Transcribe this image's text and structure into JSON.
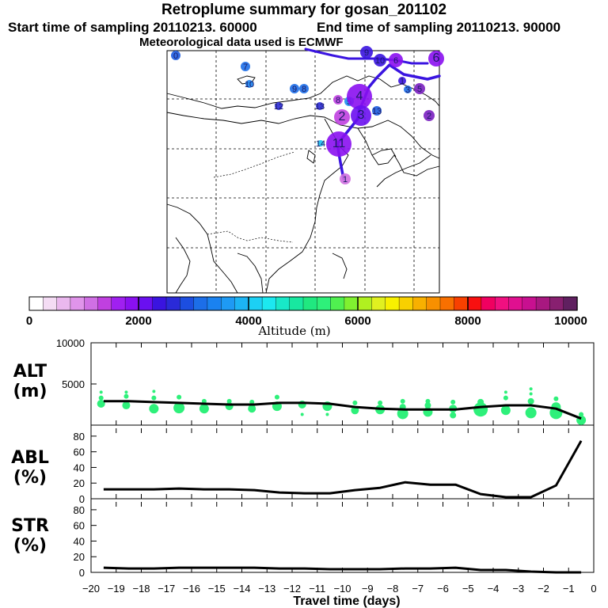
{
  "header": {
    "title": "Retroplume summary for gosan_201102",
    "start_time": "Start time of sampling 20110213. 60000",
    "end_time": "End time of sampling 20110213. 90000",
    "met_data": "Meteorological data used is ECMWF"
  },
  "colors": {
    "trajectory": "#3a14e0",
    "points": "#2ef07a",
    "line": "#000000"
  },
  "map": {
    "plume_labels": [
      {
        "label": "0",
        "color": "#1c5ce0",
        "alt_m": 3000
      },
      {
        "label": "7",
        "color": "#1c6ee8",
        "alt_m": 3000
      },
      {
        "label": "10",
        "color": "#1a82f0",
        "alt_m": 3400
      },
      {
        "label": "9",
        "color": "#1c6ee8",
        "alt_m": 3000
      },
      {
        "label": "8",
        "color": "#1c6ee8",
        "alt_m": 3000
      },
      {
        "label": "12",
        "color": "#2a2ad8",
        "alt_m": 2600
      },
      {
        "label": "13",
        "color": "#2a2ad8",
        "alt_m": 2600
      },
      {
        "label": "8",
        "color": "#c040e0",
        "alt_m": 1000
      },
      {
        "label": "5",
        "color": "#1e90f0",
        "alt_m": 3400
      },
      {
        "label": "4",
        "color": "#8a10f0",
        "alt_m": 1700
      },
      {
        "label": "2",
        "color": "#c040e0",
        "alt_m": 900
      },
      {
        "label": "3",
        "color": "#6a10f0",
        "alt_m": 1900
      },
      {
        "label": "13",
        "color": "#1c5ce0",
        "alt_m": 2800
      },
      {
        "label": "11",
        "color": "#8a10f0",
        "alt_m": 1700
      },
      {
        "label": "14",
        "color": "#1cc0f0",
        "alt_m": 3800
      },
      {
        "label": "1",
        "color": "#d070e0",
        "alt_m": 500
      },
      {
        "label": "9",
        "color": "#3a14e0",
        "alt_m": 2400
      },
      {
        "label": "10",
        "color": "#3a14e0",
        "alt_m": 2400
      },
      {
        "label": "6",
        "color": "#8a10f0",
        "alt_m": 1800
      },
      {
        "label": "6",
        "color": "#8a10f0",
        "alt_m": 1800
      },
      {
        "label": "1",
        "color": "#3a14e0",
        "alt_m": 2400
      },
      {
        "label": "3",
        "color": "#1c6ee8",
        "alt_m": 3000
      },
      {
        "label": "5",
        "color": "#7a20c0",
        "alt_m": 1800
      },
      {
        "label": "2",
        "color": "#7a20c0",
        "alt_m": 1800
      }
    ]
  },
  "colorbar": {
    "ticks": [
      "0",
      "2000",
      "4000",
      "6000",
      "8000",
      "10000"
    ],
    "label": "Altitude (m)",
    "colors": [
      "#ffffff",
      "#f4dcf4",
      "#eab8ee",
      "#e094ea",
      "#d070e4",
      "#c040e0",
      "#a020f0",
      "#8a10f0",
      "#6a10f0",
      "#3a14e0",
      "#2a2ad8",
      "#1c4ee0",
      "#1c6ee8",
      "#1a82f0",
      "#1e9af4",
      "#1cb4f4",
      "#1cd0f4",
      "#1ce8f0",
      "#18e8c8",
      "#18e8a0",
      "#20e880",
      "#2ef07a",
      "#50f050",
      "#80f030",
      "#b0f020",
      "#e0f020",
      "#f8f000",
      "#f8d000",
      "#f8b000",
      "#f89000",
      "#f87000",
      "#f84000",
      "#f81010",
      "#f00060",
      "#f01080",
      "#e01090",
      "#c81090",
      "#a81880",
      "#882070",
      "#602060"
    ]
  },
  "chart_data": [
    {
      "type": "line",
      "name": "ALT",
      "title": "Travel time (days)",
      "ylabel": "ALT (m)",
      "ylabel_top": "ALT",
      "ylabel_bottom": "(m)",
      "xlim": [
        -20,
        0
      ],
      "ylim": [
        0,
        10000
      ],
      "yticks": [
        "10000",
        "5000"
      ],
      "ytick_values": [
        10000,
        5000
      ],
      "x": [
        -19.5,
        -18.5,
        -17.5,
        -16.5,
        -15.5,
        -14.5,
        -13.5,
        -12.5,
        -11.5,
        -10.5,
        -9.5,
        -8.5,
        -7.5,
        -6.5,
        -5.5,
        -4.5,
        -3.5,
        -2.5,
        -1.5,
        -0.5
      ],
      "values": [
        2900,
        2900,
        2800,
        2700,
        2600,
        2500,
        2500,
        2700,
        2700,
        2600,
        2200,
        2000,
        1900,
        1900,
        1900,
        2200,
        2400,
        2400,
        2000,
        800
      ],
      "scatter": [
        {
          "x": -19.6,
          "y": 2600,
          "r": 5
        },
        {
          "x": -19.6,
          "y": 3300,
          "r": 3
        },
        {
          "x": -19.6,
          "y": 4000,
          "r": 2
        },
        {
          "x": -18.6,
          "y": 2400,
          "r": 5
        },
        {
          "x": -18.6,
          "y": 3500,
          "r": 3
        },
        {
          "x": -18.6,
          "y": 4000,
          "r": 2
        },
        {
          "x": -17.5,
          "y": 2000,
          "r": 6
        },
        {
          "x": -17.5,
          "y": 3300,
          "r": 3
        },
        {
          "x": -17.5,
          "y": 4100,
          "r": 2
        },
        {
          "x": -16.5,
          "y": 2100,
          "r": 7
        },
        {
          "x": -16.5,
          "y": 3400,
          "r": 3
        },
        {
          "x": -15.5,
          "y": 2000,
          "r": 6
        },
        {
          "x": -15.5,
          "y": 2900,
          "r": 3
        },
        {
          "x": -14.5,
          "y": 2300,
          "r": 5
        },
        {
          "x": -14.5,
          "y": 2900,
          "r": 3
        },
        {
          "x": -13.6,
          "y": 2000,
          "r": 5
        },
        {
          "x": -13.6,
          "y": 2800,
          "r": 3
        },
        {
          "x": -12.6,
          "y": 2300,
          "r": 6
        },
        {
          "x": -12.6,
          "y": 3400,
          "r": 3
        },
        {
          "x": -11.6,
          "y": 2500,
          "r": 5
        },
        {
          "x": -11.6,
          "y": 1300,
          "r": 2
        },
        {
          "x": -10.6,
          "y": 2300,
          "r": 6
        },
        {
          "x": -10.6,
          "y": 1300,
          "r": 2
        },
        {
          "x": -9.5,
          "y": 1800,
          "r": 5
        },
        {
          "x": -9.5,
          "y": 2700,
          "r": 3
        },
        {
          "x": -8.5,
          "y": 1900,
          "r": 6
        },
        {
          "x": -8.5,
          "y": 2700,
          "r": 3
        },
        {
          "x": -7.6,
          "y": 1400,
          "r": 7
        },
        {
          "x": -7.6,
          "y": 2200,
          "r": 4
        },
        {
          "x": -7.6,
          "y": 2900,
          "r": 3
        },
        {
          "x": -6.6,
          "y": 1600,
          "r": 6
        },
        {
          "x": -6.6,
          "y": 2400,
          "r": 4
        },
        {
          "x": -6.6,
          "y": 2900,
          "r": 3
        },
        {
          "x": -5.6,
          "y": 1200,
          "r": 4
        },
        {
          "x": -5.6,
          "y": 2000,
          "r": 5
        },
        {
          "x": -5.6,
          "y": 2800,
          "r": 3
        },
        {
          "x": -4.5,
          "y": 1900,
          "r": 9
        },
        {
          "x": -4.5,
          "y": 2800,
          "r": 4
        },
        {
          "x": -3.5,
          "y": 1800,
          "r": 6
        },
        {
          "x": -3.5,
          "y": 3300,
          "r": 3
        },
        {
          "x": -3.5,
          "y": 4000,
          "r": 2
        },
        {
          "x": -2.5,
          "y": 1500,
          "r": 7
        },
        {
          "x": -2.5,
          "y": 2900,
          "r": 4
        },
        {
          "x": -2.5,
          "y": 3800,
          "r": 2
        },
        {
          "x": -2.5,
          "y": 4400,
          "r": 2
        },
        {
          "x": -1.5,
          "y": 1500,
          "r": 8
        },
        {
          "x": -1.5,
          "y": 2200,
          "r": 6
        },
        {
          "x": -1.5,
          "y": 3200,
          "r": 3
        },
        {
          "x": -0.5,
          "y": 600,
          "r": 6
        },
        {
          "x": -0.5,
          "y": 1300,
          "r": 3
        }
      ]
    },
    {
      "type": "line",
      "name": "ABL",
      "ylabel": "ABL (%)",
      "ylabel_top": "ABL",
      "ylabel_bottom": "(%)",
      "xlim": [
        -20,
        0
      ],
      "ylim": [
        0,
        90
      ],
      "yticks": [
        "80",
        "60",
        "40",
        "20",
        "0"
      ],
      "ytick_values": [
        80,
        60,
        40,
        20,
        0
      ],
      "x": [
        -19.5,
        -18.5,
        -17.5,
        -16.5,
        -15.5,
        -14.5,
        -13.5,
        -12.5,
        -11.5,
        -10.5,
        -9.5,
        -8.5,
        -7.5,
        -6.5,
        -5.5,
        -4.5,
        -3.5,
        -2.5,
        -1.5,
        -0.5
      ],
      "values": [
        12,
        12,
        12,
        13,
        12,
        12,
        11,
        8,
        7,
        7,
        11,
        14,
        21,
        18,
        18,
        6,
        2,
        2,
        17,
        74
      ]
    },
    {
      "type": "line",
      "name": "STR",
      "ylabel": "STR (%)",
      "ylabel_top": "STR",
      "ylabel_bottom": "(%)",
      "xlim": [
        -20,
        0
      ],
      "ylim": [
        0,
        90
      ],
      "yticks": [
        "80",
        "60",
        "40",
        "20",
        "0"
      ],
      "ytick_values": [
        80,
        60,
        40,
        20,
        0
      ],
      "xlabel": "Travel time (days)",
      "xticks": [
        "−20",
        "−19",
        "−18",
        "−17",
        "−16",
        "−15",
        "−14",
        "−13",
        "−12",
        "−11",
        "−10",
        "−9",
        "−8",
        "−7",
        "−6",
        "−5",
        "−4",
        "−3",
        "−2",
        "−1",
        "0"
      ],
      "x": [
        -19.5,
        -18.5,
        -17.5,
        -16.5,
        -15.5,
        -14.5,
        -13.5,
        -12.5,
        -11.5,
        -10.5,
        -9.5,
        -8.5,
        -7.5,
        -6.5,
        -5.5,
        -4.5,
        -3.5,
        -2.5,
        -1.5,
        -0.5
      ],
      "values": [
        6,
        5,
        5,
        6,
        6,
        6,
        6,
        5,
        5,
        4,
        4,
        4,
        5,
        5,
        6,
        3,
        3,
        1,
        0,
        0
      ]
    }
  ]
}
